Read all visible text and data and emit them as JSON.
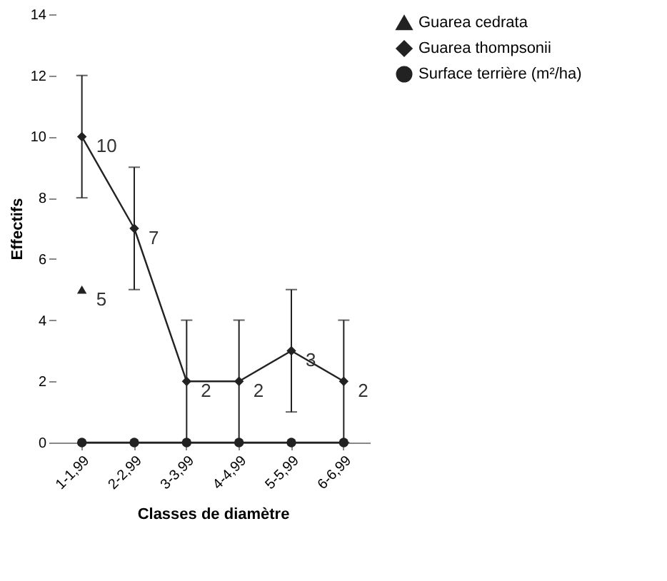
{
  "chart_data": {
    "type": "line",
    "xlabel": "Classes de diamètre",
    "ylabel": "Effectifs",
    "categories": [
      "1-1,99",
      "2-2,99",
      "3-3,99",
      "4-4,99",
      "5-5,99",
      "6-6,99"
    ],
    "ylim": [
      0,
      14
    ],
    "yticks": [
      0,
      2,
      4,
      6,
      8,
      10,
      12,
      14
    ],
    "grid": false,
    "legend": "right",
    "series": [
      {
        "name": "Guarea cedrata",
        "color": "#222222",
        "marker": "triangle",
        "values": [
          5,
          null,
          null,
          null,
          null,
          null
        ],
        "value_labels": [
          "5",
          null,
          null,
          null,
          null,
          null
        ]
      },
      {
        "name": "Guarea thompsonii",
        "color": "#222222",
        "marker": "diamond",
        "values": [
          10,
          7,
          2,
          2,
          3,
          2
        ],
        "errors": [
          2,
          2,
          2,
          2,
          2,
          2
        ],
        "value_labels": [
          "10",
          "7",
          "2",
          "2",
          "3",
          "2"
        ]
      },
      {
        "name": "Surface terrière (m²/ha)",
        "color": "#222222",
        "marker": "circle",
        "values": [
          0,
          0,
          0,
          0,
          0,
          0
        ]
      }
    ]
  }
}
